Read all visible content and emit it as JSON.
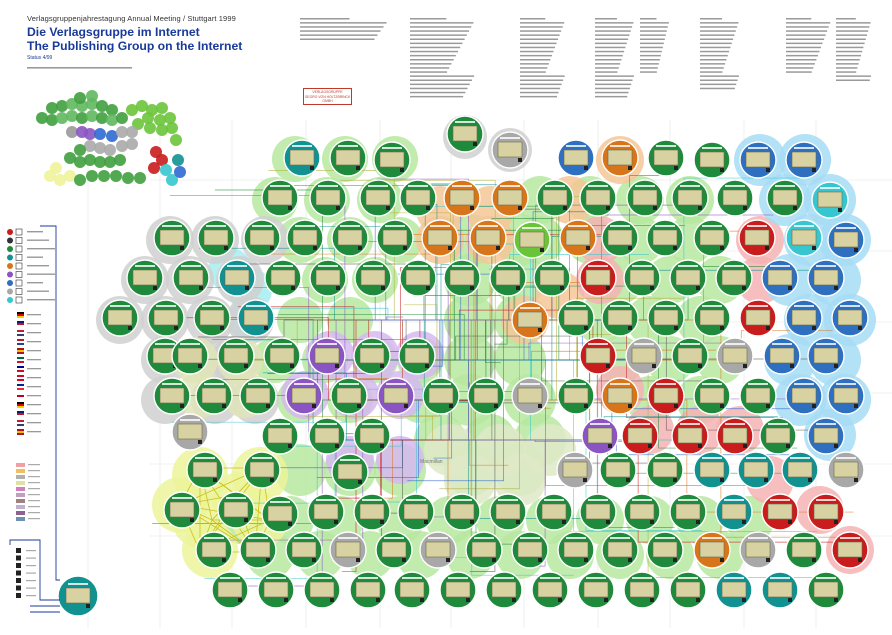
{
  "header": {
    "meeting_line": "Verlagsgruppenjahrestagung Annual Meeting / Stuttgart 1999",
    "title_de": "Die Verlagsgruppe im Internet",
    "title_en": "The Publishing Group on the Internet",
    "status": "Status 4/99"
  },
  "stamp": {
    "line1": "VERLAGSGRUPPE",
    "line2": "GEORG VON HOLTZBRINCK",
    "line3": "GMBH"
  },
  "center_label": "Macmillan",
  "colors": {
    "background": "#ffffff",
    "title_blue": "#1a3a9a",
    "node_green": "#1f8a3c",
    "node_teal": "#129191",
    "node_gray": "#a8a8a8",
    "node_orange": "#d8751a",
    "node_red": "#c91c1c",
    "node_purple": "#8a55c2",
    "node_blue": "#2f6fbf",
    "node_cyan": "#37c6cf",
    "node_lime": "#6ac43a",
    "screen_fill": "#d8d2a2",
    "halo_green": "#b7e7a0",
    "halo_blue": "#a6dcf5",
    "halo_orange": "#f5c796",
    "halo_red": "#f4b3b3",
    "halo_purple": "#d6b9f0",
    "halo_yellow": "#ecf59a",
    "halo_gray": "#d0d0d0",
    "halo_cyan": "#a7ecee"
  },
  "legend": {
    "type_icons": [
      "green-dot-icon",
      "teal-dot-icon",
      "orange-dot-icon",
      "purple-dot-icon",
      "blue-dot-icon",
      "gray-dot-icon",
      "cyan-dot-icon"
    ],
    "flag_icons": [
      "germany-flag-icon",
      "uk-flag-icon",
      "usa-flag-icon",
      "netherlands-flag-icon",
      "spain-flag-icon",
      "mexico-flag-icon",
      "australia-flag-icon",
      "canada-flag-icon",
      "france-flag-icon",
      "japan-flag-icon"
    ],
    "status_icons": [
      "mail-icon",
      "search-icon",
      "shop-icon",
      "chat-icon",
      "warning-icon"
    ]
  }
}
